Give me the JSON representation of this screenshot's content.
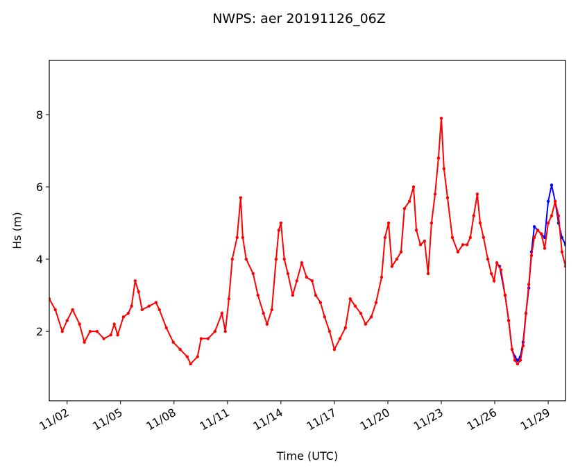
{
  "chart_data": {
    "type": "line",
    "title": "NWPS: aer 20191126_06Z",
    "xlabel": "Time (UTC)",
    "ylabel": "Hs (m)",
    "xlim": [
      1.0,
      29.97
    ],
    "ylim": [
      0.08,
      9.5
    ],
    "xticks": [
      {
        "value": 2,
        "label": "11/02"
      },
      {
        "value": 5,
        "label": "11/05"
      },
      {
        "value": 8,
        "label": "11/08"
      },
      {
        "value": 11,
        "label": "11/11"
      },
      {
        "value": 14,
        "label": "11/14"
      },
      {
        "value": 17,
        "label": "11/17"
      },
      {
        "value": 20,
        "label": "11/20"
      },
      {
        "value": 23,
        "label": "11/23"
      },
      {
        "value": 26,
        "label": "11/26"
      },
      {
        "value": 29,
        "label": "11/29"
      }
    ],
    "yticks": [
      2,
      4,
      6,
      8
    ],
    "grid": false,
    "series": [
      {
        "color": "#0000ff",
        "x": [
          26.27,
          26.58,
          26.78,
          26.97,
          27.13,
          27.28,
          27.44,
          27.59,
          27.75,
          27.91,
          28.06,
          28.22,
          28.41,
          28.61,
          28.8,
          29.0,
          29.19,
          29.39,
          29.58,
          29.77,
          29.97
        ],
        "values": [
          3.8,
          3.0,
          2.3,
          1.5,
          1.3,
          1.2,
          1.3,
          1.7,
          2.5,
          3.2,
          4.2,
          4.9,
          4.8,
          4.7,
          4.6,
          5.6,
          6.05,
          5.6,
          5.0,
          4.6,
          4.4
        ]
      },
      {
        "color": "#ff0000",
        "x": [
          1.0,
          1.34,
          1.73,
          2.0,
          2.31,
          2.7,
          2.97,
          3.29,
          3.68,
          4.06,
          4.45,
          4.65,
          4.84,
          5.16,
          5.43,
          5.62,
          5.82,
          6.01,
          6.21,
          6.6,
          6.99,
          7.18,
          7.57,
          7.96,
          8.35,
          8.74,
          8.93,
          9.32,
          9.52,
          9.91,
          10.3,
          10.69,
          10.88,
          11.08,
          11.27,
          11.54,
          11.74,
          11.86,
          12.05,
          12.44,
          12.71,
          13.02,
          13.22,
          13.49,
          13.73,
          13.88,
          14.0,
          14.19,
          14.39,
          14.66,
          14.89,
          15.17,
          15.44,
          15.75,
          15.95,
          16.22,
          16.45,
          16.73,
          17.0,
          17.31,
          17.62,
          17.89,
          18.17,
          18.48,
          18.75,
          19.07,
          19.34,
          19.65,
          19.84,
          20.04,
          20.23,
          20.5,
          20.74,
          20.93,
          21.21,
          21.44,
          21.6,
          21.83,
          22.06,
          22.26,
          22.45,
          22.65,
          22.84,
          23.0,
          23.15,
          23.35,
          23.62,
          23.93,
          24.21,
          24.44,
          24.63,
          24.82,
          25.02,
          25.18,
          25.37,
          25.61,
          25.81,
          25.96,
          26.12,
          26.35,
          26.58,
          26.78,
          26.97,
          27.13,
          27.28,
          27.44,
          27.59,
          27.75,
          27.91,
          28.06,
          28.22,
          28.41,
          28.61,
          28.8,
          29.0,
          29.19,
          29.39,
          29.58,
          29.77,
          29.97
        ],
        "values": [
          2.9,
          2.6,
          2.0,
          2.3,
          2.6,
          2.2,
          1.7,
          2.0,
          2.0,
          1.8,
          1.9,
          2.2,
          1.9,
          2.4,
          2.5,
          2.7,
          3.4,
          3.1,
          2.6,
          2.7,
          2.8,
          2.6,
          2.1,
          1.7,
          1.5,
          1.3,
          1.1,
          1.3,
          1.8,
          1.8,
          2.0,
          2.5,
          2.0,
          2.9,
          4.0,
          4.6,
          5.7,
          4.6,
          4.0,
          3.6,
          3.0,
          2.5,
          2.2,
          2.6,
          4.0,
          4.8,
          5.0,
          4.0,
          3.6,
          3.0,
          3.4,
          3.9,
          3.5,
          3.4,
          3.0,
          2.8,
          2.4,
          2.0,
          1.5,
          1.8,
          2.1,
          2.9,
          2.7,
          2.5,
          2.2,
          2.4,
          2.8,
          3.5,
          4.6,
          5.0,
          3.8,
          4.0,
          4.2,
          5.4,
          5.6,
          6.0,
          4.8,
          4.4,
          4.5,
          3.6,
          5.0,
          5.8,
          6.8,
          7.9,
          6.5,
          5.7,
          4.6,
          4.2,
          4.4,
          4.4,
          4.6,
          5.2,
          5.8,
          5.0,
          4.6,
          4.0,
          3.6,
          3.4,
          3.9,
          3.7,
          3.0,
          2.3,
          1.5,
          1.2,
          1.1,
          1.2,
          1.6,
          2.5,
          3.3,
          4.1,
          4.6,
          4.8,
          4.7,
          4.3,
          5.0,
          5.2,
          5.6,
          5.2,
          4.2,
          3.8
        ]
      }
    ]
  }
}
